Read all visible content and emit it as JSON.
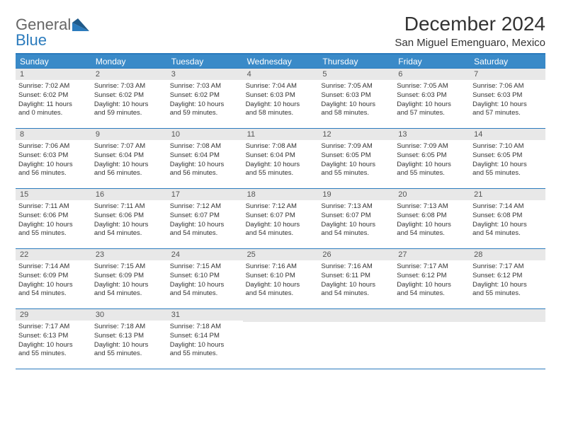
{
  "logo": {
    "line1": "General",
    "line2": "Blue"
  },
  "title": "December 2024",
  "location": "San Miguel Emenguaro, Mexico",
  "colors": {
    "header_bar": "#3a8ac8",
    "border": "#2b7bbd",
    "daynum_bg": "#e8e8e8",
    "text": "#333333",
    "logo_gray": "#666666",
    "logo_blue": "#2b7bbd",
    "background": "#ffffff"
  },
  "weekdays": [
    "Sunday",
    "Monday",
    "Tuesday",
    "Wednesday",
    "Thursday",
    "Friday",
    "Saturday"
  ],
  "weeks": [
    [
      {
        "n": "1",
        "sr": "Sunrise: 7:02 AM",
        "ss": "Sunset: 6:02 PM",
        "d1": "Daylight: 11 hours",
        "d2": "and 0 minutes."
      },
      {
        "n": "2",
        "sr": "Sunrise: 7:03 AM",
        "ss": "Sunset: 6:02 PM",
        "d1": "Daylight: 10 hours",
        "d2": "and 59 minutes."
      },
      {
        "n": "3",
        "sr": "Sunrise: 7:03 AM",
        "ss": "Sunset: 6:02 PM",
        "d1": "Daylight: 10 hours",
        "d2": "and 59 minutes."
      },
      {
        "n": "4",
        "sr": "Sunrise: 7:04 AM",
        "ss": "Sunset: 6:03 PM",
        "d1": "Daylight: 10 hours",
        "d2": "and 58 minutes."
      },
      {
        "n": "5",
        "sr": "Sunrise: 7:05 AM",
        "ss": "Sunset: 6:03 PM",
        "d1": "Daylight: 10 hours",
        "d2": "and 58 minutes."
      },
      {
        "n": "6",
        "sr": "Sunrise: 7:05 AM",
        "ss": "Sunset: 6:03 PM",
        "d1": "Daylight: 10 hours",
        "d2": "and 57 minutes."
      },
      {
        "n": "7",
        "sr": "Sunrise: 7:06 AM",
        "ss": "Sunset: 6:03 PM",
        "d1": "Daylight: 10 hours",
        "d2": "and 57 minutes."
      }
    ],
    [
      {
        "n": "8",
        "sr": "Sunrise: 7:06 AM",
        "ss": "Sunset: 6:03 PM",
        "d1": "Daylight: 10 hours",
        "d2": "and 56 minutes."
      },
      {
        "n": "9",
        "sr": "Sunrise: 7:07 AM",
        "ss": "Sunset: 6:04 PM",
        "d1": "Daylight: 10 hours",
        "d2": "and 56 minutes."
      },
      {
        "n": "10",
        "sr": "Sunrise: 7:08 AM",
        "ss": "Sunset: 6:04 PM",
        "d1": "Daylight: 10 hours",
        "d2": "and 56 minutes."
      },
      {
        "n": "11",
        "sr": "Sunrise: 7:08 AM",
        "ss": "Sunset: 6:04 PM",
        "d1": "Daylight: 10 hours",
        "d2": "and 55 minutes."
      },
      {
        "n": "12",
        "sr": "Sunrise: 7:09 AM",
        "ss": "Sunset: 6:05 PM",
        "d1": "Daylight: 10 hours",
        "d2": "and 55 minutes."
      },
      {
        "n": "13",
        "sr": "Sunrise: 7:09 AM",
        "ss": "Sunset: 6:05 PM",
        "d1": "Daylight: 10 hours",
        "d2": "and 55 minutes."
      },
      {
        "n": "14",
        "sr": "Sunrise: 7:10 AM",
        "ss": "Sunset: 6:05 PM",
        "d1": "Daylight: 10 hours",
        "d2": "and 55 minutes."
      }
    ],
    [
      {
        "n": "15",
        "sr": "Sunrise: 7:11 AM",
        "ss": "Sunset: 6:06 PM",
        "d1": "Daylight: 10 hours",
        "d2": "and 55 minutes."
      },
      {
        "n": "16",
        "sr": "Sunrise: 7:11 AM",
        "ss": "Sunset: 6:06 PM",
        "d1": "Daylight: 10 hours",
        "d2": "and 54 minutes."
      },
      {
        "n": "17",
        "sr": "Sunrise: 7:12 AM",
        "ss": "Sunset: 6:07 PM",
        "d1": "Daylight: 10 hours",
        "d2": "and 54 minutes."
      },
      {
        "n": "18",
        "sr": "Sunrise: 7:12 AM",
        "ss": "Sunset: 6:07 PM",
        "d1": "Daylight: 10 hours",
        "d2": "and 54 minutes."
      },
      {
        "n": "19",
        "sr": "Sunrise: 7:13 AM",
        "ss": "Sunset: 6:07 PM",
        "d1": "Daylight: 10 hours",
        "d2": "and 54 minutes."
      },
      {
        "n": "20",
        "sr": "Sunrise: 7:13 AM",
        "ss": "Sunset: 6:08 PM",
        "d1": "Daylight: 10 hours",
        "d2": "and 54 minutes."
      },
      {
        "n": "21",
        "sr": "Sunrise: 7:14 AM",
        "ss": "Sunset: 6:08 PM",
        "d1": "Daylight: 10 hours",
        "d2": "and 54 minutes."
      }
    ],
    [
      {
        "n": "22",
        "sr": "Sunrise: 7:14 AM",
        "ss": "Sunset: 6:09 PM",
        "d1": "Daylight: 10 hours",
        "d2": "and 54 minutes."
      },
      {
        "n": "23",
        "sr": "Sunrise: 7:15 AM",
        "ss": "Sunset: 6:09 PM",
        "d1": "Daylight: 10 hours",
        "d2": "and 54 minutes."
      },
      {
        "n": "24",
        "sr": "Sunrise: 7:15 AM",
        "ss": "Sunset: 6:10 PM",
        "d1": "Daylight: 10 hours",
        "d2": "and 54 minutes."
      },
      {
        "n": "25",
        "sr": "Sunrise: 7:16 AM",
        "ss": "Sunset: 6:10 PM",
        "d1": "Daylight: 10 hours",
        "d2": "and 54 minutes."
      },
      {
        "n": "26",
        "sr": "Sunrise: 7:16 AM",
        "ss": "Sunset: 6:11 PM",
        "d1": "Daylight: 10 hours",
        "d2": "and 54 minutes."
      },
      {
        "n": "27",
        "sr": "Sunrise: 7:17 AM",
        "ss": "Sunset: 6:12 PM",
        "d1": "Daylight: 10 hours",
        "d2": "and 54 minutes."
      },
      {
        "n": "28",
        "sr": "Sunrise: 7:17 AM",
        "ss": "Sunset: 6:12 PM",
        "d1": "Daylight: 10 hours",
        "d2": "and 55 minutes."
      }
    ],
    [
      {
        "n": "29",
        "sr": "Sunrise: 7:17 AM",
        "ss": "Sunset: 6:13 PM",
        "d1": "Daylight: 10 hours",
        "d2": "and 55 minutes."
      },
      {
        "n": "30",
        "sr": "Sunrise: 7:18 AM",
        "ss": "Sunset: 6:13 PM",
        "d1": "Daylight: 10 hours",
        "d2": "and 55 minutes."
      },
      {
        "n": "31",
        "sr": "Sunrise: 7:18 AM",
        "ss": "Sunset: 6:14 PM",
        "d1": "Daylight: 10 hours",
        "d2": "and 55 minutes."
      },
      null,
      null,
      null,
      null
    ]
  ]
}
